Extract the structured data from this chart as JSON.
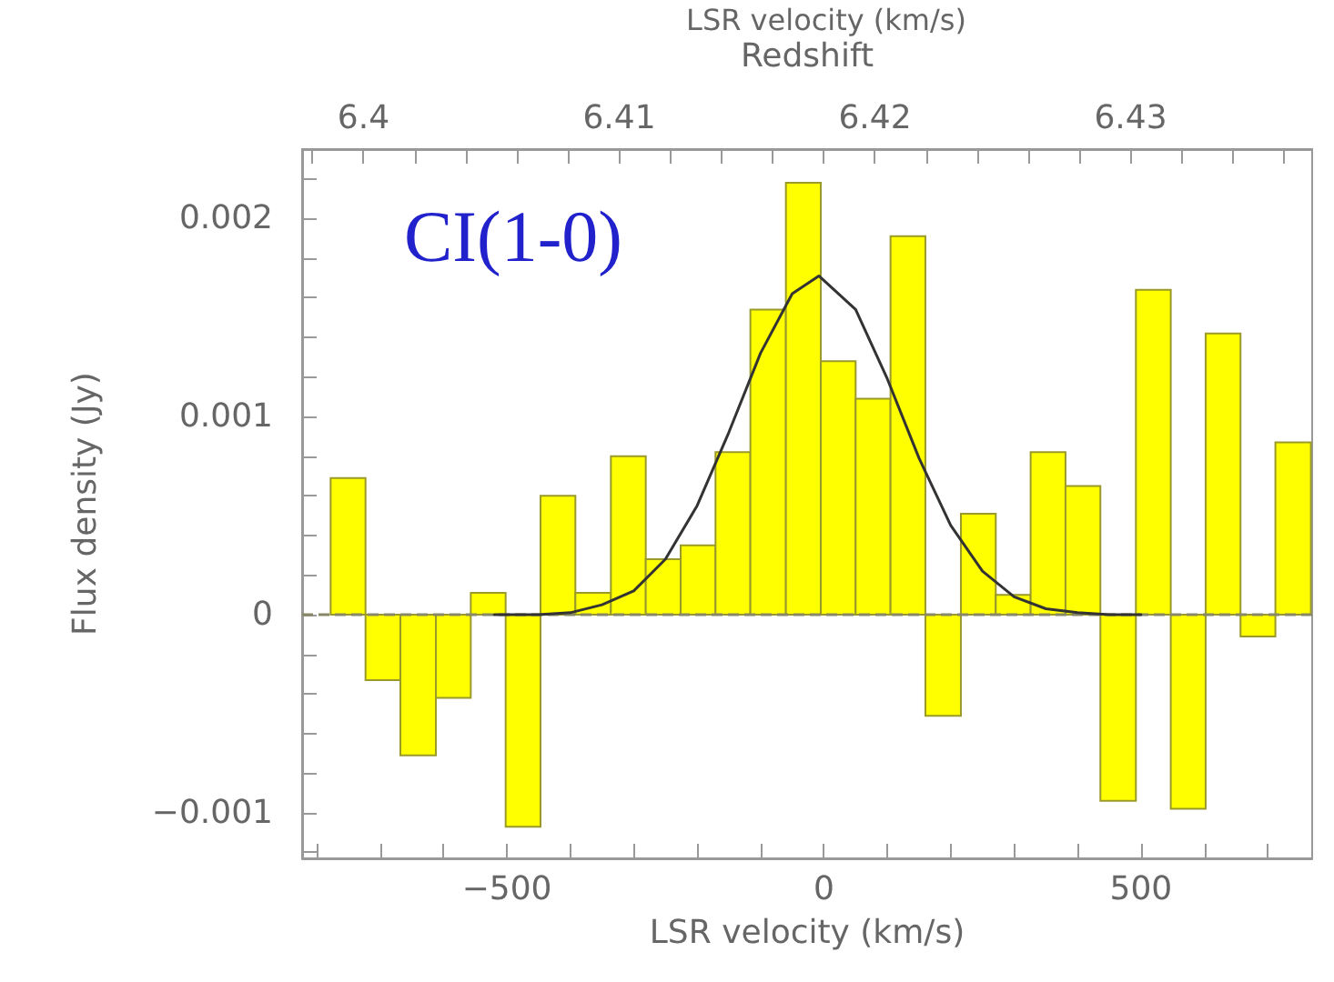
{
  "chart_data": {
    "type": "histogram",
    "title": "LSR velocity (km/s)",
    "xlabel": "LSR velocity (km/s)",
    "ylabel": "Flux density (Jy)",
    "x2label": "Redshift",
    "annotations": [
      "CI(1-0)"
    ],
    "bins": [
      -778,
      -723,
      -668,
      -612,
      -557,
      -502,
      -447,
      -392,
      -336,
      -281,
      -226,
      -171,
      -116,
      -60,
      -5,
      50,
      105,
      160,
      216,
      271,
      326,
      381,
      436,
      492,
      547,
      602,
      657,
      712,
      768
    ],
    "values": [
      0.00069,
      -0.00033,
      -0.00071,
      -0.00042,
      0.00011,
      -0.00107,
      0.0006,
      0.00011,
      0.0008,
      0.00028,
      0.00035,
      0.00082,
      0.00154,
      0.00218,
      0.00128,
      0.00109,
      0.00191,
      -0.00051,
      0.00051,
      0.0001,
      0.00082,
      0.00065,
      -0.00094,
      0.00164,
      -0.00098,
      0.00142,
      -0.00011,
      0.00087
    ],
    "color": "#ffff00",
    "series": [
      {
        "type": "line",
        "color": "#333333",
        "x": [
          -520,
          -450,
          -400,
          -350,
          -300,
          -250,
          -200,
          -150,
          -100,
          -50,
          -8,
          50,
          100,
          150,
          200,
          250,
          300,
          350,
          400,
          450,
          500
        ],
        "values": [
          0,
          0,
          1e-05,
          5e-05,
          0.00012,
          0.00028,
          0.00055,
          0.00092,
          0.00132,
          0.00162,
          0.00171,
          0.00154,
          0.00119,
          0.00079,
          0.00045,
          0.00022,
          9e-05,
          3e-05,
          1e-05,
          0,
          0
        ]
      }
    ],
    "ref_lines": [
      {
        "axis": "y",
        "value": 0,
        "color": "#888866",
        "line_style": "dashed"
      }
    ],
    "xlim": [
      -823,
      770
    ],
    "xticks": [
      {
        "value": -800,
        "label": null
      },
      {
        "value": -700,
        "label": null
      },
      {
        "value": -600,
        "label": null
      },
      {
        "value": -500,
        "label": "−500"
      },
      {
        "value": -400,
        "label": null
      },
      {
        "value": -300,
        "label": null
      },
      {
        "value": -200,
        "label": null
      },
      {
        "value": -100,
        "label": null
      },
      0,
      {
        "value": 100,
        "label": null
      },
      {
        "value": 200,
        "label": null
      },
      {
        "value": 300,
        "label": null
      },
      {
        "value": 400,
        "label": null
      },
      500,
      {
        "value": 600,
        "label": null
      },
      {
        "value": 700,
        "label": null
      }
    ],
    "x2lim": [
      6.3976,
      6.4371
    ],
    "x2ticks": [
      {
        "value": 6.398,
        "label": null
      },
      6.4,
      {
        "value": 6.402,
        "label": null
      },
      {
        "value": 6.404,
        "label": null
      },
      {
        "value": 6.406,
        "label": null
      },
      {
        "value": 6.408,
        "label": null
      },
      6.41,
      {
        "value": 6.412,
        "label": null
      },
      {
        "value": 6.414,
        "label": null
      },
      {
        "value": 6.416,
        "label": null
      },
      {
        "value": 6.418,
        "label": null
      },
      6.42,
      {
        "value": 6.422,
        "label": null
      },
      {
        "value": 6.424,
        "label": null
      },
      {
        "value": 6.426,
        "label": null
      },
      {
        "value": 6.428,
        "label": null
      },
      6.43,
      {
        "value": 6.432,
        "label": null
      },
      {
        "value": 6.434,
        "label": null
      },
      {
        "value": 6.436,
        "label": null
      }
    ],
    "ylim": [
      -0.00123,
      0.00235
    ],
    "yticks": [
      {
        "value": -0.0012,
        "label": null
      },
      {
        "value": -0.001,
        "label": "−0.001"
      },
      {
        "value": -0.0008,
        "label": null
      },
      {
        "value": -0.0006,
        "label": null
      },
      {
        "value": -0.0004,
        "label": null
      },
      {
        "value": -0.0002,
        "label": null
      },
      0,
      {
        "value": 0.0002,
        "label": null
      },
      {
        "value": 0.0004,
        "label": null
      },
      {
        "value": 0.0006,
        "label": null
      },
      {
        "value": 0.0008,
        "label": null
      },
      0.001,
      {
        "value": 0.0012,
        "label": null
      },
      {
        "value": 0.0014,
        "label": null
      },
      {
        "value": 0.0016,
        "label": null
      },
      {
        "value": 0.0018,
        "label": null
      },
      0.002,
      {
        "value": 0.0022,
        "label": null
      }
    ],
    "grid": false,
    "marker": "none"
  }
}
